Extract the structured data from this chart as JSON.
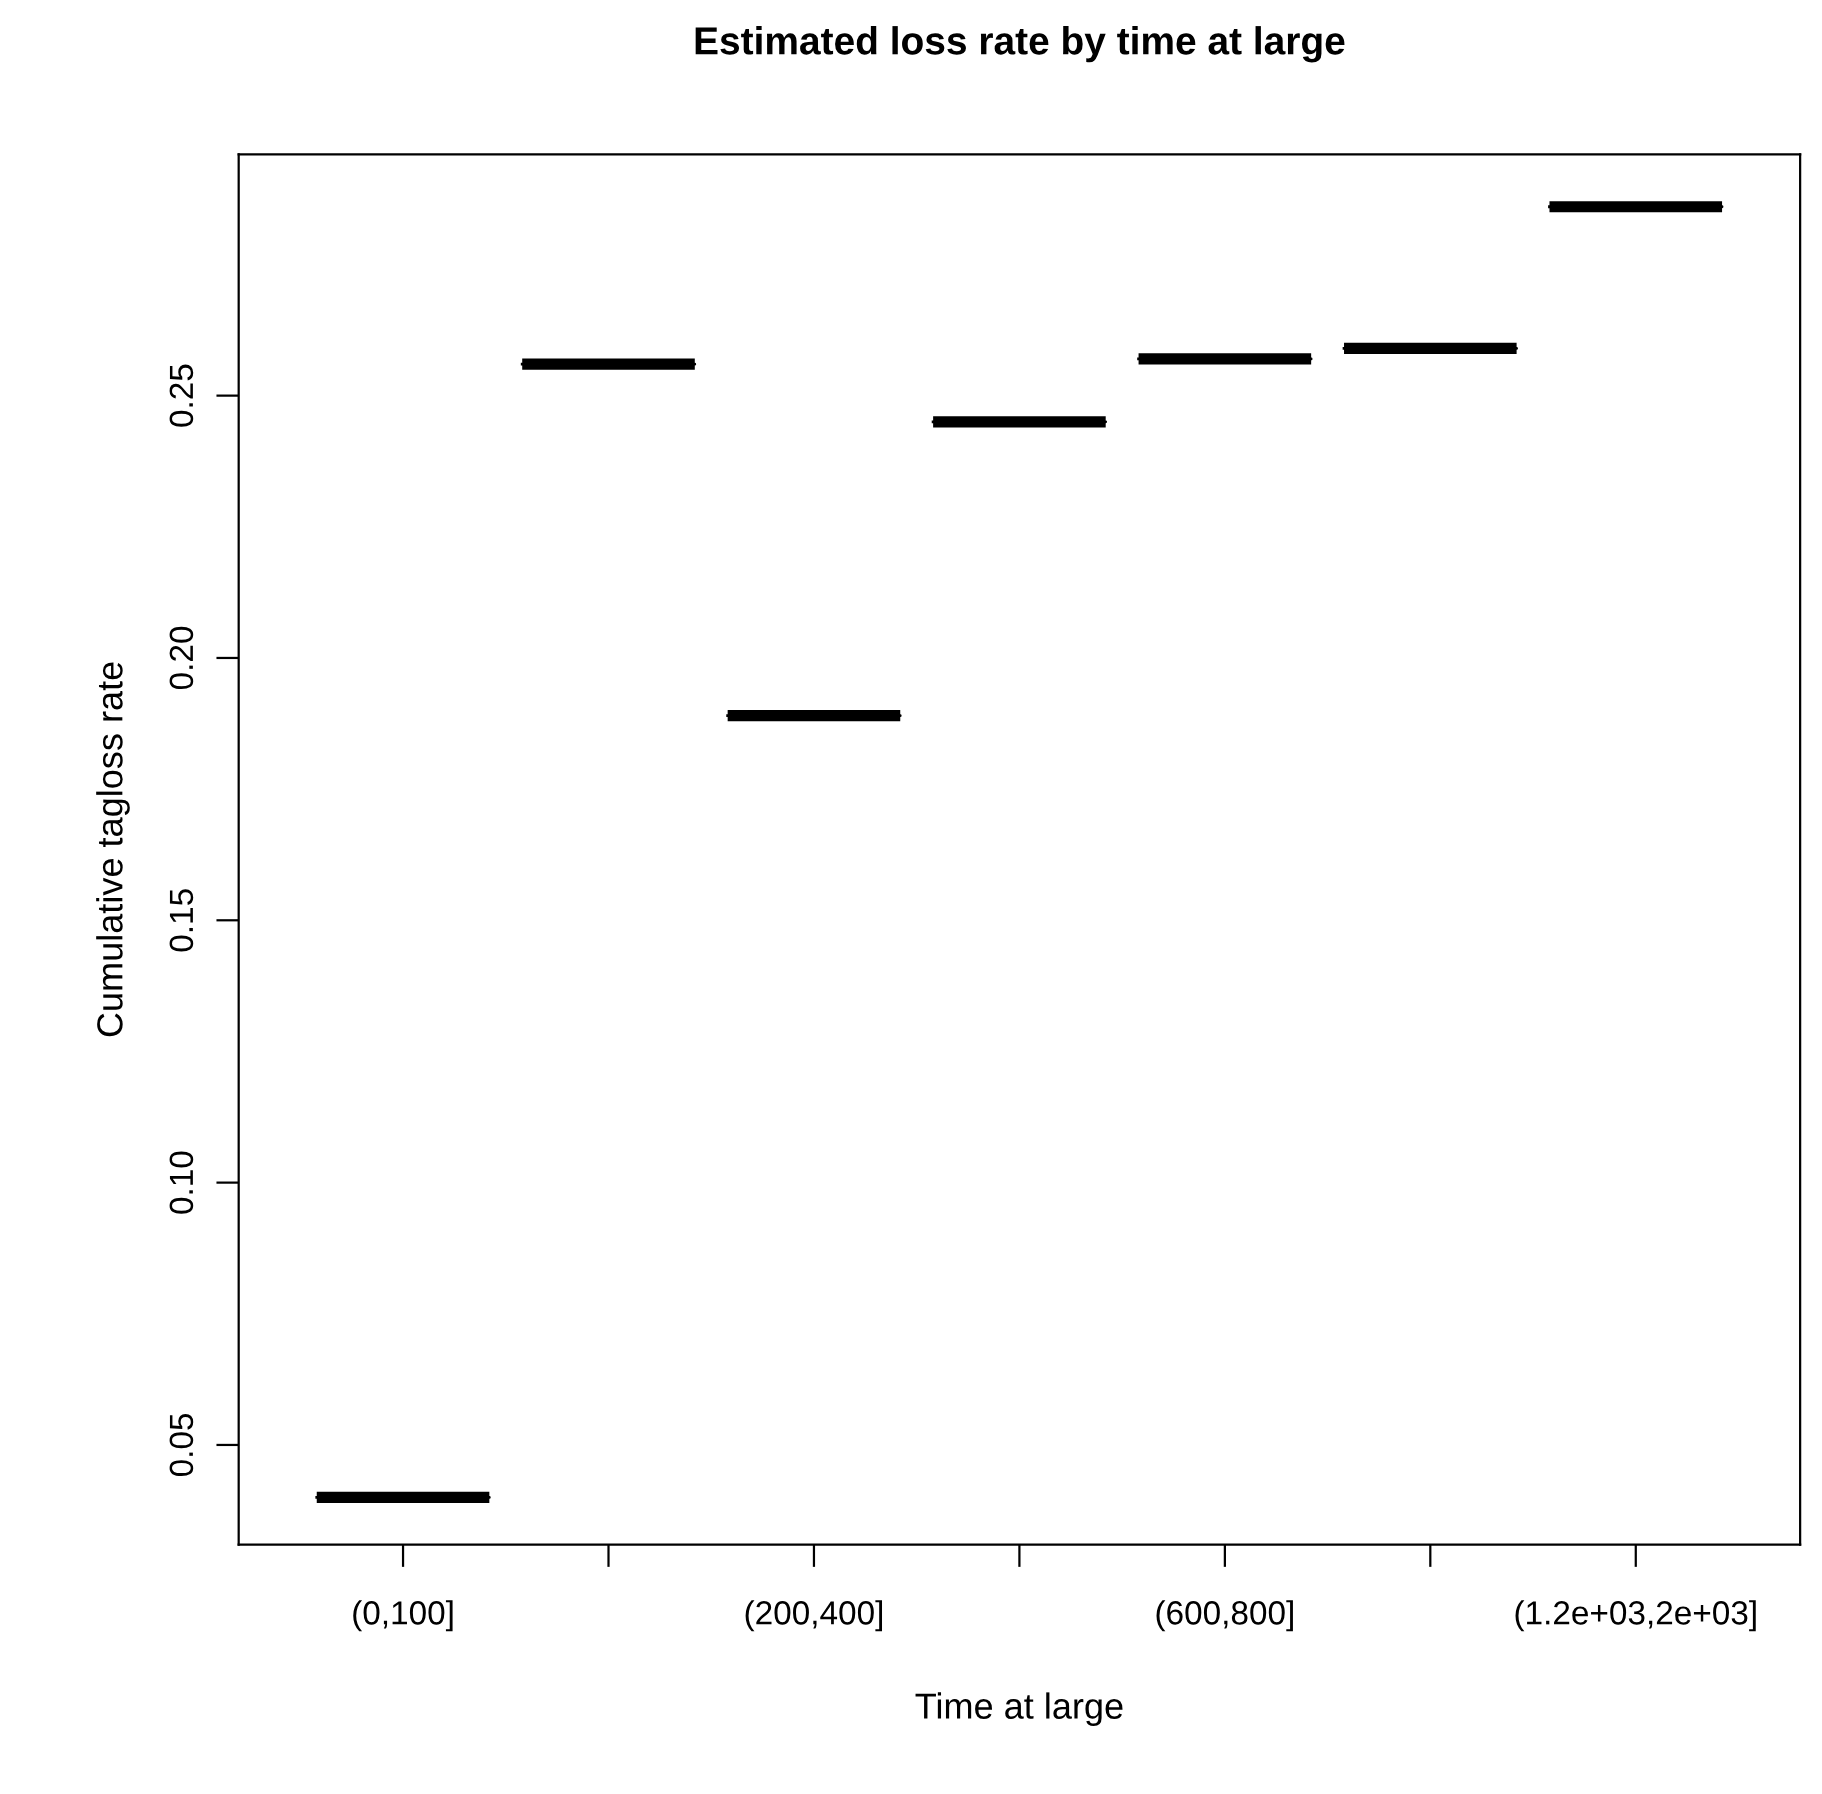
{
  "chart_data": {
    "type": "box",
    "title": "Estimated loss rate by time at large",
    "xlabel": "Time at large",
    "ylabel": "Cumulative tagloss rate",
    "categories": [
      "(0,100]",
      null,
      "(200,400]",
      null,
      "(600,800]",
      null,
      "(1.2e+03,2e+03]"
    ],
    "boxes": [
      {
        "low": 0.04,
        "q1": 0.04,
        "median": 0.04,
        "q3": 0.04,
        "high": 0.04
      },
      {
        "low": 0.256,
        "q1": 0.256,
        "median": 0.256,
        "q3": 0.256,
        "high": 0.256
      },
      {
        "low": 0.189,
        "q1": 0.189,
        "median": 0.189,
        "q3": 0.189,
        "high": 0.189
      },
      {
        "low": 0.245,
        "q1": 0.245,
        "median": 0.245,
        "q3": 0.245,
        "high": 0.245
      },
      {
        "low": 0.257,
        "q1": 0.257,
        "median": 0.257,
        "q3": 0.257,
        "high": 0.257
      },
      {
        "low": 0.259,
        "q1": 0.259,
        "median": 0.259,
        "q3": 0.259,
        "high": 0.259
      },
      {
        "low": 0.286,
        "q1": 0.286,
        "median": 0.286,
        "q3": 0.286,
        "high": 0.286
      }
    ],
    "ylim": [
      0.031,
      0.296
    ],
    "yticks": [
      0.05,
      {
        "value": 0.1,
        "label": "0.10"
      },
      0.15,
      {
        "value": 0.2,
        "label": "0.20"
      },
      0.25
    ],
    "grid": false
  }
}
